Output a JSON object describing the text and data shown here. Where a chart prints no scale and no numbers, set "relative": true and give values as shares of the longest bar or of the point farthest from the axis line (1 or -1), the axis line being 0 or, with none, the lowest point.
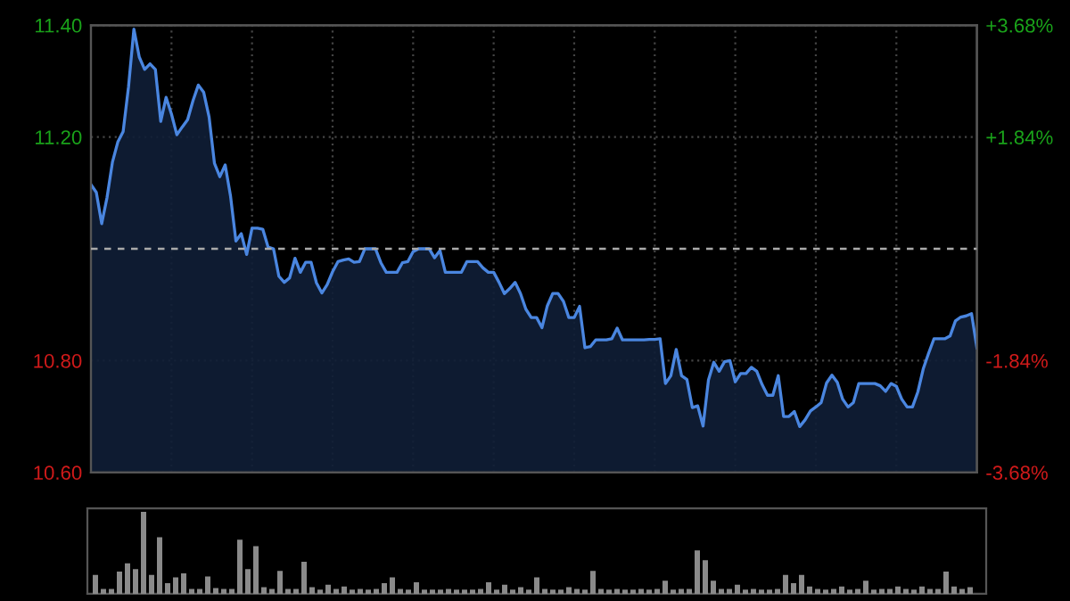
{
  "chart_data": [
    {
      "type": "area",
      "categories": [
        null,
        null,
        null,
        null,
        null,
        null,
        null,
        null,
        null,
        null,
        null,
        null,
        null,
        null,
        null,
        null,
        null,
        null,
        null,
        null,
        null,
        null,
        null,
        null,
        null,
        null,
        null,
        null,
        null,
        null,
        null,
        null,
        null,
        null,
        null,
        null,
        null,
        null,
        null,
        null,
        null,
        null,
        null,
        null,
        null,
        null,
        null,
        null,
        null,
        null,
        null,
        null,
        null,
        null,
        null,
        null,
        null,
        null,
        null,
        null,
        null,
        null,
        null,
        null,
        null,
        null,
        null,
        null,
        null,
        null,
        null,
        null,
        null,
        null,
        null,
        null,
        null,
        null,
        null,
        null,
        null,
        null,
        null,
        null,
        null,
        null,
        null,
        null,
        null,
        null,
        null,
        null,
        null,
        null,
        null,
        null,
        null,
        null,
        null,
        null,
        null,
        null,
        null,
        null,
        null,
        null,
        null,
        null,
        null,
        null,
        null,
        null,
        null,
        null,
        null,
        null,
        null,
        null,
        null,
        null,
        null,
        null,
        null,
        null,
        null,
        null,
        null,
        null,
        null,
        null,
        null,
        null,
        null,
        null,
        null,
        null,
        null,
        null,
        null,
        null,
        null,
        null,
        null,
        null,
        null,
        null,
        null,
        null,
        null,
        null,
        null,
        null,
        null,
        null,
        null,
        null,
        null,
        null,
        null,
        null,
        null,
        null,
        null,
        null,
        null,
        null
      ],
      "ylim": [
        10.6,
        11.4
      ],
      "yticks": [
        {
          "value": 10.6,
          "label": "10.60"
        },
        {
          "value": 10.8,
          "label": "10.80"
        },
        {
          "value": 11.2,
          "label": "11.20"
        },
        {
          "value": 11.4,
          "label": "11.40"
        }
      ],
      "y2lim": [
        -3.68,
        3.68
      ],
      "y2ticks": [
        {
          "value": -3.68,
          "label": "-3.68%"
        },
        {
          "value": -1.84,
          "label": "-1.84%"
        },
        {
          "value": 1.84,
          "label": "+1.84%"
        },
        {
          "value": 3.68,
          "label": "+3.68%"
        }
      ],
      "ref_lines": [
        {
          "axis": "y2",
          "value": 0,
          "color": "#aaaaaa",
          "line_style": "dashed"
        }
      ],
      "grid": true,
      "series": [
        {
          "color": "#4a86e0",
          "values": [
            11.115,
            11.101,
            11.045,
            11.092,
            11.155,
            11.191,
            11.21,
            11.29,
            11.393,
            11.343,
            11.321,
            11.331,
            11.321,
            11.228,
            11.271,
            11.241,
            11.204,
            11.218,
            11.231,
            11.265,
            11.293,
            11.28,
            11.236,
            11.153,
            11.129,
            11.15,
            11.094,
            11.014,
            11.027,
            10.99,
            11.037,
            11.037,
            11.035,
            11.003,
            11.0,
            10.951,
            10.94,
            10.948,
            10.983,
            10.958,
            10.976,
            10.976,
            10.939,
            10.921,
            10.936,
            10.959,
            10.977,
            10.98,
            10.982,
            10.976,
            10.977,
            11.0,
            11.0,
            11.0,
            10.975,
            10.958,
            10.958,
            10.958,
            10.975,
            10.977,
            10.995,
            11.0,
            11.0,
            11.0,
            10.984,
            10.997,
            10.958,
            10.958,
            10.958,
            10.958,
            10.977,
            10.977,
            10.977,
            10.966,
            10.958,
            10.958,
            10.94,
            10.92,
            10.929,
            10.94,
            10.92,
            10.892,
            10.877,
            10.877,
            10.859,
            10.898,
            10.92,
            10.92,
            10.906,
            10.877,
            10.877,
            10.897,
            10.823,
            10.825,
            10.837,
            10.837,
            10.837,
            10.839,
            10.858,
            10.837,
            10.837,
            10.837,
            10.837,
            10.837,
            10.838,
            10.838,
            10.839,
            10.759,
            10.773,
            10.82,
            10.773,
            10.766,
            10.716,
            10.719,
            10.683,
            10.765,
            10.797,
            10.781,
            10.798,
            10.8,
            10.762,
            10.777,
            10.777,
            10.788,
            10.781,
            10.757,
            10.738,
            10.738,
            10.773,
            10.7,
            10.7,
            10.709,
            10.682,
            10.694,
            10.71,
            10.717,
            10.725,
            10.76,
            10.774,
            10.761,
            10.731,
            10.717,
            10.725,
            10.759,
            10.759,
            10.759,
            10.759,
            10.755,
            10.745,
            10.759,
            10.754,
            10.731,
            10.717,
            10.717,
            10.744,
            10.785,
            10.813,
            10.839,
            10.839,
            10.839,
            10.844,
            10.871,
            10.878,
            10.88,
            10.884,
            10.823
          ]
        }
      ]
    },
    {
      "type": "bar",
      "relative": true,
      "categories": [
        null,
        null,
        null,
        null,
        null,
        null,
        null,
        null,
        null,
        null,
        null,
        null,
        null,
        null,
        null,
        null,
        null,
        null,
        null,
        null,
        null,
        null,
        null,
        null,
        null,
        null,
        null,
        null,
        null,
        null,
        null,
        null,
        null,
        null,
        null,
        null,
        null,
        null,
        null,
        null,
        null,
        null,
        null,
        null,
        null,
        null,
        null,
        null,
        null,
        null,
        null,
        null,
        null,
        null,
        null,
        null,
        null,
        null,
        null,
        null,
        null,
        null,
        null,
        null,
        null,
        null,
        null,
        null,
        null,
        null,
        null,
        null,
        null,
        null,
        null,
        null,
        null,
        null,
        null,
        null,
        null,
        null,
        null,
        null,
        null,
        null,
        null,
        null,
        null,
        null,
        null,
        null,
        null,
        null,
        null,
        null,
        null,
        null,
        null,
        null,
        null,
        null,
        null,
        null,
        null,
        null,
        null,
        null,
        null,
        null
      ],
      "series": [
        {
          "color": "#8a8a8a",
          "values": [
            0.23,
            0.06,
            0.06,
            0.27,
            0.37,
            0.3,
            1.0,
            0.23,
            0.69,
            0.13,
            0.2,
            0.25,
            0.06,
            0.06,
            0.21,
            0.07,
            0.06,
            0.06,
            0.66,
            0.3,
            0.58,
            0.08,
            0.06,
            0.28,
            0.06,
            0.06,
            0.39,
            0.08,
            0.05,
            0.11,
            0.06,
            0.09,
            0.05,
            0.06,
            0.05,
            0.06,
            0.13,
            0.2,
            0.06,
            0.05,
            0.14,
            0.05,
            0.05,
            0.05,
            0.06,
            0.05,
            0.05,
            0.05,
            0.06,
            0.14,
            0.05,
            0.11,
            0.05,
            0.08,
            0.05,
            0.2,
            0.06,
            0.05,
            0.05,
            0.08,
            0.06,
            0.05,
            0.28,
            0.06,
            0.05,
            0.06,
            0.05,
            0.05,
            0.06,
            0.05,
            0.06,
            0.16,
            0.05,
            0.06,
            0.06,
            0.53,
            0.41,
            0.16,
            0.06,
            0.06,
            0.11,
            0.05,
            0.06,
            0.05,
            0.05,
            0.06,
            0.23,
            0.13,
            0.23,
            0.09,
            0.06,
            0.05,
            0.06,
            0.09,
            0.05,
            0.06,
            0.16,
            0.05,
            0.06,
            0.06,
            0.09,
            0.06,
            0.05,
            0.09,
            0.06,
            0.06,
            0.27,
            0.09,
            0.06,
            0.08
          ]
        }
      ]
    }
  ]
}
